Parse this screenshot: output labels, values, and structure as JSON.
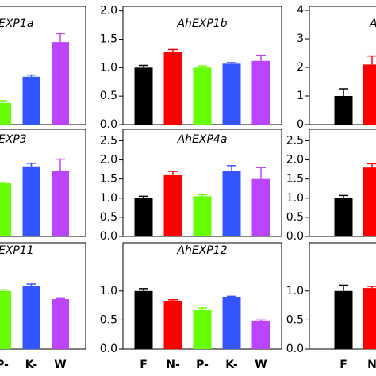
{
  "chart_data": [
    {
      "type": "bar",
      "title": "EXP1a",
      "values": [
        0.38,
        0.84,
        1.45
      ],
      "errors": [
        0.04,
        0.03,
        0.15
      ],
      "colors": [
        "#66ff00",
        "#3355ff",
        "#bb44ff"
      ],
      "ylim": [
        0,
        2.08
      ]
    },
    {
      "type": "bar",
      "title": "AhEXP1b",
      "values": [
        1.0,
        1.28,
        1.0,
        1.07,
        1.12
      ],
      "errors": [
        0.04,
        0.04,
        0.03,
        0.02,
        0.1
      ],
      "colors": [
        "#000000",
        "#ff0000",
        "#66ff00",
        "#3355ff",
        "#bb44ff"
      ],
      "ylim": [
        0,
        2.08
      ],
      "yticks": [
        {
          "value": 0,
          "label": "0.0"
        },
        {
          "value": 0.5,
          "label": "0.5"
        },
        {
          "value": 1,
          "label": "1.0"
        },
        {
          "value": 1.5,
          "label": "1.5"
        },
        {
          "value": 2,
          "label": "2.0"
        }
      ]
    },
    {
      "type": "bar",
      "title": "A",
      "values": [
        1.0,
        2.1
      ],
      "errors": [
        0.25,
        0.3
      ],
      "colors": [
        "#000000",
        "#ff0000"
      ],
      "ylim": [
        0,
        4.14
      ],
      "yticks": [
        0,
        1,
        2,
        3,
        4
      ]
    },
    {
      "type": "bar",
      "title": "EXP3",
      "values": [
        1.39,
        1.83,
        1.72
      ],
      "errors": [
        0.03,
        0.08,
        0.3
      ],
      "colors": [
        "#66ff00",
        "#3355ff",
        "#bb44ff"
      ],
      "ylim": [
        0,
        2.8
      ]
    },
    {
      "type": "bar",
      "title": "AhEXP4a",
      "values": [
        1.0,
        1.62,
        1.05,
        1.7,
        1.5
      ],
      "errors": [
        0.05,
        0.08,
        0.04,
        0.15,
        0.3
      ],
      "colors": [
        "#000000",
        "#ff0000",
        "#66ff00",
        "#3355ff",
        "#bb44ff"
      ],
      "ylim": [
        0,
        2.8
      ],
      "yticks": [
        {
          "value": 0,
          "label": "0.0"
        },
        {
          "value": 0.5,
          "label": "0.5"
        },
        {
          "value": 1,
          "label": "1.0"
        },
        {
          "value": 1.5,
          "label": "1.5"
        },
        {
          "value": 2,
          "label": "2.0"
        },
        {
          "value": 2.5,
          "label": "2.5"
        }
      ]
    },
    {
      "type": "bar",
      "values": [
        1.0,
        1.8
      ],
      "errors": [
        0.07,
        0.1
      ],
      "colors": [
        "#000000",
        "#ff0000"
      ],
      "ylim": [
        0,
        2.8
      ],
      "yticks": [
        {
          "value": 0,
          "label": "0.0"
        },
        {
          "value": 0.5,
          "label": "0.5"
        },
        {
          "value": 1,
          "label": "1.0"
        },
        {
          "value": 1.5,
          "label": "1.5"
        },
        {
          "value": 2,
          "label": "2.0"
        },
        {
          "value": 2.5,
          "label": "2.5"
        }
      ]
    },
    {
      "type": "bar",
      "title": "EXP11",
      "categories": [
        "P-",
        "K-",
        "W"
      ],
      "values": [
        1.0,
        1.09,
        0.86
      ],
      "errors": [
        0.02,
        0.03,
        0.01
      ],
      "colors": [
        "#66ff00",
        "#3355ff",
        "#bb44ff"
      ],
      "ylim": [
        0,
        1.83
      ]
    },
    {
      "type": "bar",
      "title": "AhEXP12",
      "categories": [
        "F",
        "N-",
        "P-",
        "K-",
        "W"
      ],
      "values": [
        1.0,
        0.83,
        0.67,
        0.89,
        0.48
      ],
      "errors": [
        0.04,
        0.02,
        0.04,
        0.02,
        0.02
      ],
      "colors": [
        "#000000",
        "#ff0000",
        "#66ff00",
        "#3355ff",
        "#bb44ff"
      ],
      "ylim": [
        0,
        1.83
      ],
      "yticks": [
        {
          "value": 0,
          "label": "0.0"
        },
        {
          "value": 0.5,
          "label": "0.5"
        },
        {
          "value": 1,
          "label": "1.0"
        }
      ]
    },
    {
      "type": "bar",
      "categories": [
        "F",
        "N"
      ],
      "values": [
        1.0,
        1.05
      ],
      "errors": [
        0.1,
        0.03
      ],
      "colors": [
        "#000000",
        "#ff0000"
      ],
      "ylim": [
        0,
        1.83
      ],
      "yticks": [
        {
          "value": 0,
          "label": "0.0"
        },
        {
          "value": 0.5,
          "label": "0.5"
        },
        {
          "value": 1,
          "label": "1.0"
        }
      ]
    }
  ]
}
